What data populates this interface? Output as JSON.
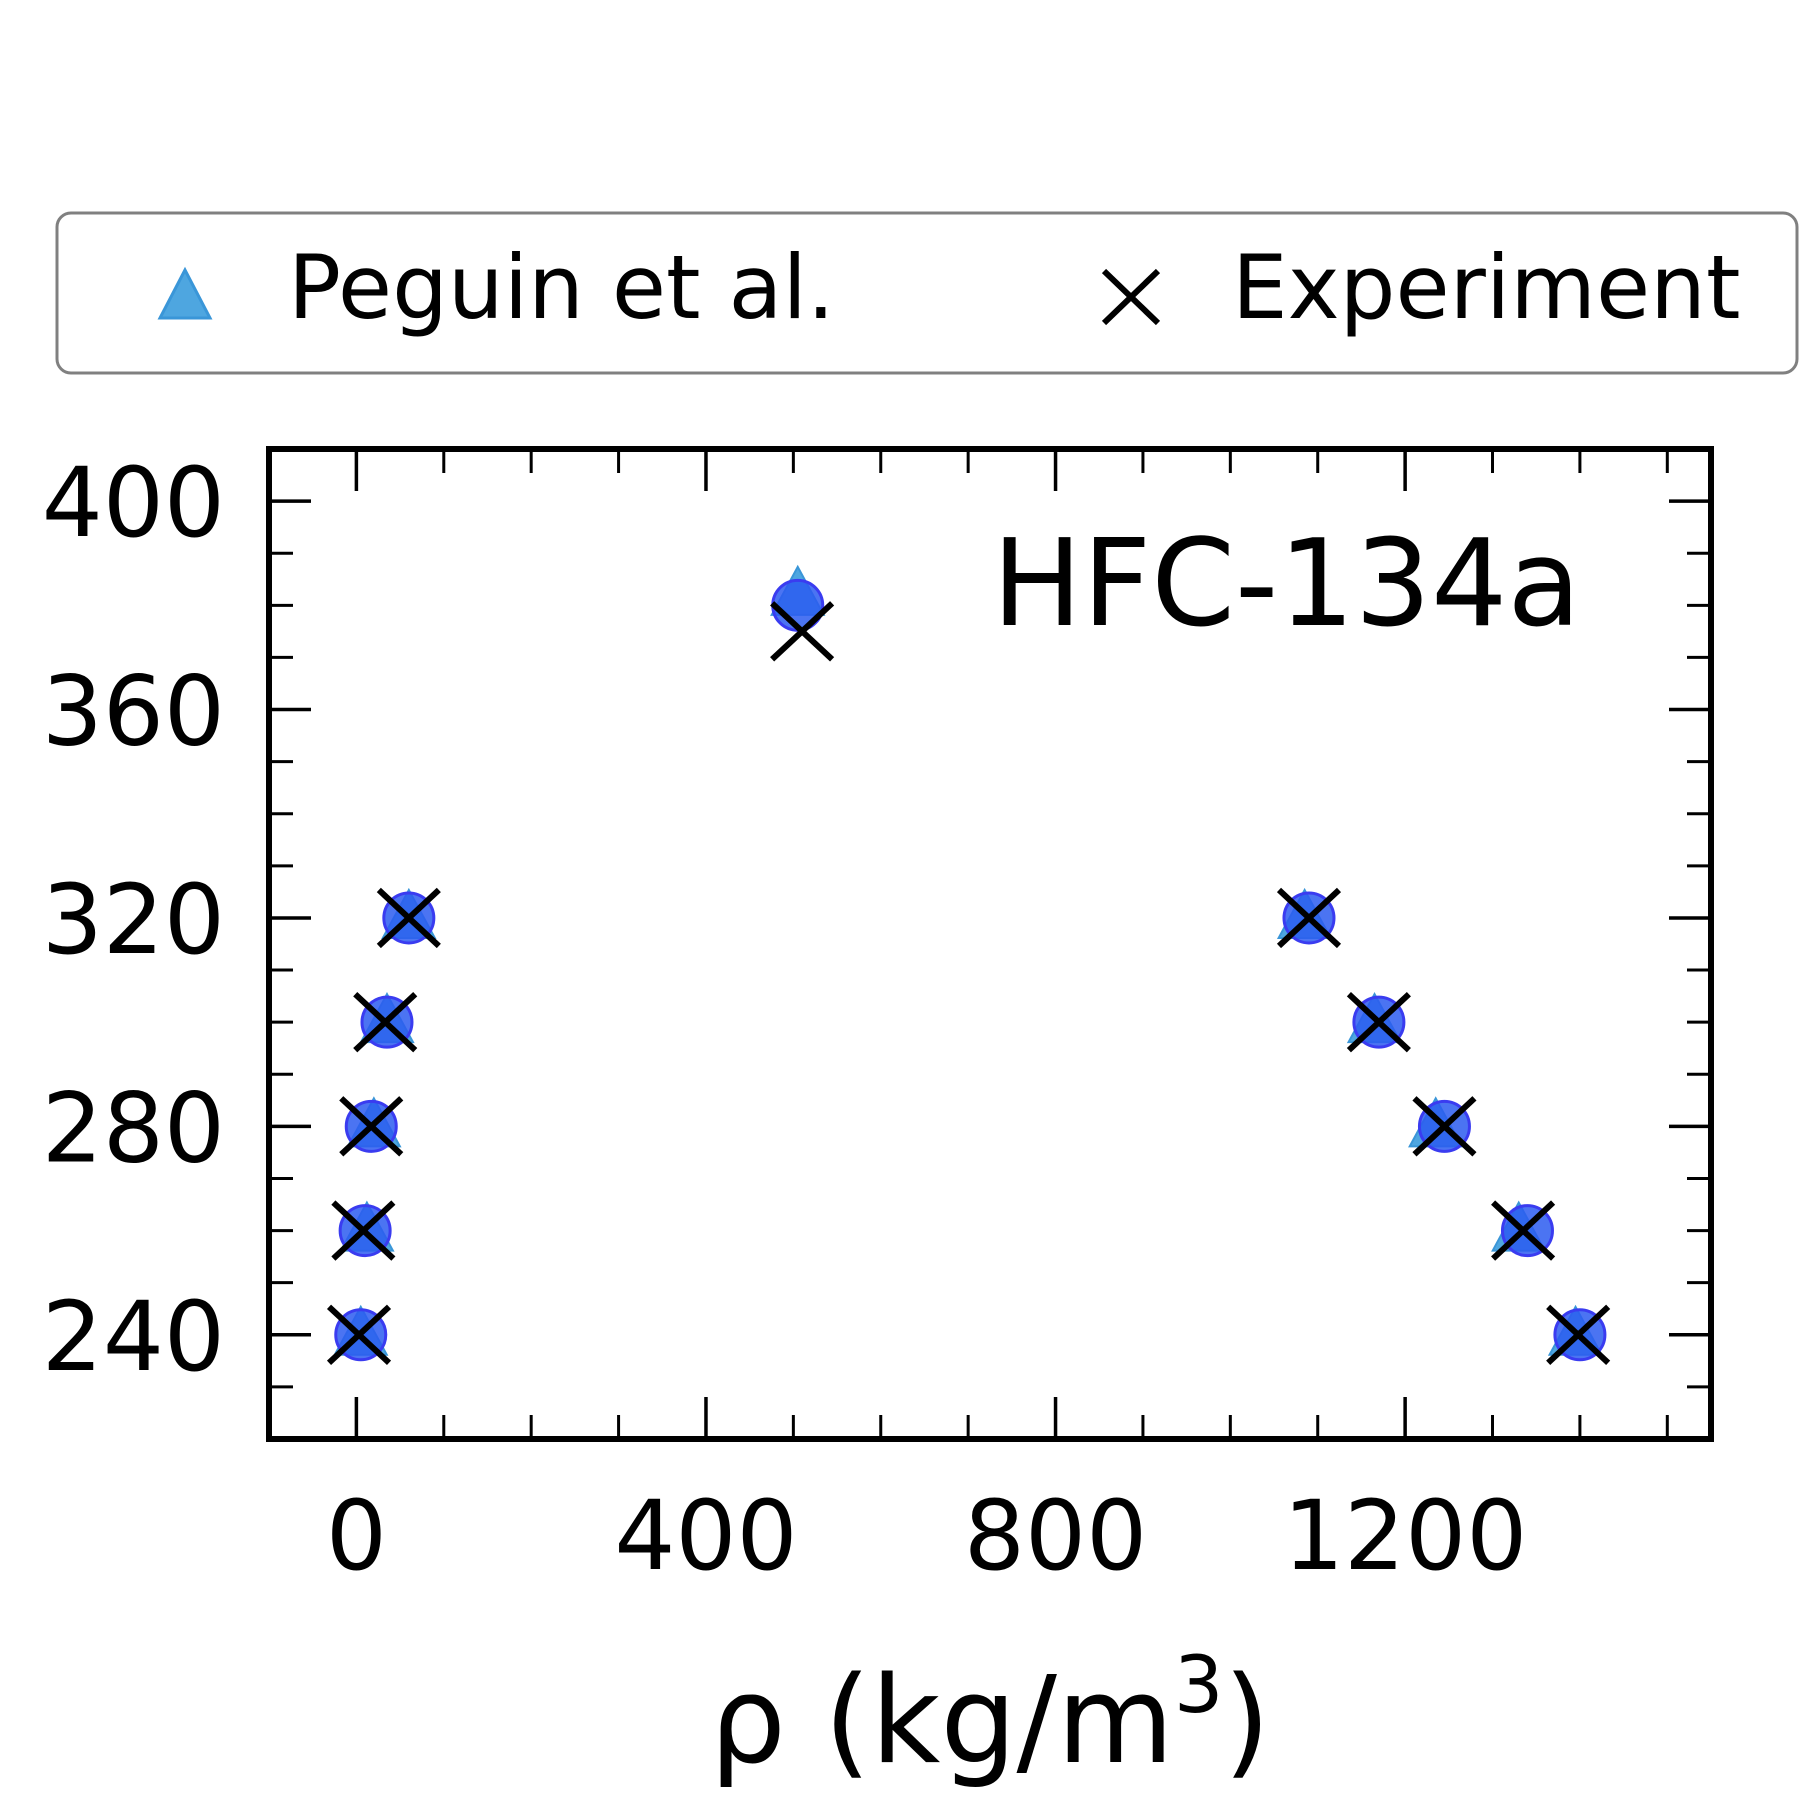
{
  "chart_data": {
    "type": "scatter",
    "annotation": "HFC-134a",
    "xlabel_main": "ρ (kg/m",
    "xlabel_sup": "3",
    "xlabel_end": ")",
    "ylabel": "",
    "xlim": [
      -100,
      1550
    ],
    "ylim": [
      220,
      410
    ],
    "x_ticks": [
      0,
      400,
      800,
      1200
    ],
    "x_tick_labels": [
      "0",
      "400",
      "800",
      "1200"
    ],
    "y_ticks": [
      240,
      280,
      320,
      360,
      400
    ],
    "y_tick_labels": [
      "240",
      "280",
      "320",
      "360",
      "400"
    ],
    "x_minor_step": 100,
    "y_minor_step": 10,
    "grid": false,
    "legend_position": "top",
    "colors": {
      "triangle": "#4ea6e0",
      "circle_fill": "#2b5cf0",
      "circle_edge": "#3a3cf0",
      "cross": "#000000"
    },
    "series": [
      {
        "name": "Peguin et al.",
        "marker": "triangle",
        "points": [
          [
            5,
            240
          ],
          [
            12,
            260
          ],
          [
            20,
            280
          ],
          [
            35,
            300
          ],
          [
            60,
            320
          ],
          [
            505,
            382
          ],
          [
            1085,
            320
          ],
          [
            1165,
            300
          ],
          [
            1235,
            280
          ],
          [
            1330,
            260
          ],
          [
            1395,
            240
          ]
        ]
      },
      {
        "marker": "circle",
        "points": [
          [
            5,
            240
          ],
          [
            10,
            260
          ],
          [
            17,
            280
          ],
          [
            35,
            300
          ],
          [
            60,
            320
          ],
          [
            505,
            380
          ],
          [
            1090,
            320
          ],
          [
            1170,
            300
          ],
          [
            1245,
            280
          ],
          [
            1340,
            260
          ],
          [
            1400,
            240
          ]
        ]
      },
      {
        "name": "Experiment",
        "marker": "cross",
        "points": [
          [
            3,
            240
          ],
          [
            8,
            260
          ],
          [
            17,
            280
          ],
          [
            33,
            300
          ],
          [
            60,
            320
          ],
          [
            510,
            375
          ],
          [
            1090,
            320
          ],
          [
            1170,
            300
          ],
          [
            1245,
            280
          ],
          [
            1335,
            260
          ],
          [
            1398,
            240
          ]
        ]
      }
    ]
  }
}
